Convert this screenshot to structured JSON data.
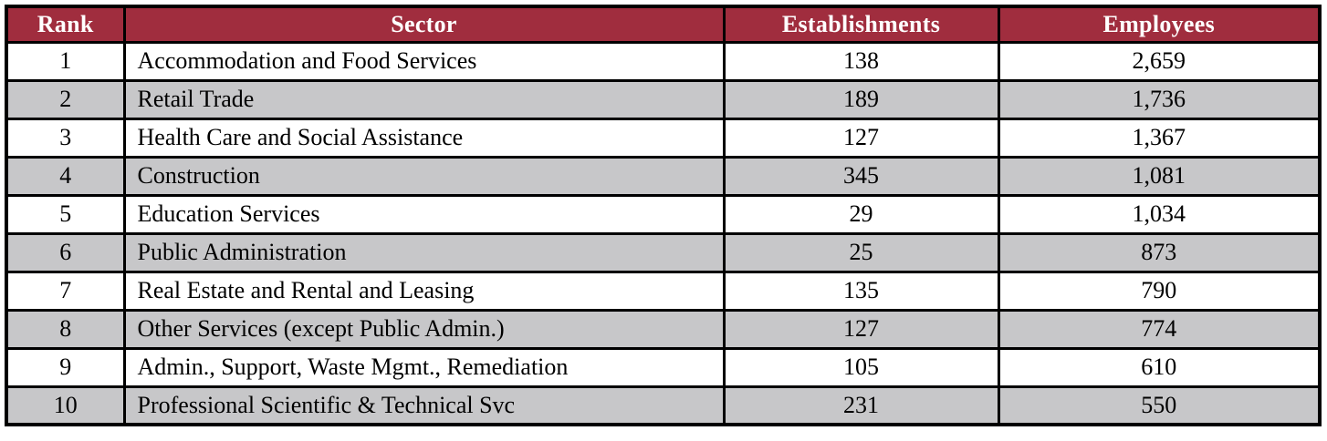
{
  "colors": {
    "header_bg": "#A02D3E",
    "header_text": "#FFFFFF",
    "row_white_bg": "#FFFFFF",
    "row_gray_bg": "#C7C7C9",
    "border": "#000000",
    "body_text": "#000000"
  },
  "table": {
    "columns": [
      {
        "label": "Rank"
      },
      {
        "label": "Sector"
      },
      {
        "label": "Establishments"
      },
      {
        "label": "Employees"
      }
    ],
    "rows": [
      {
        "rank": "1",
        "sector": "Accommodation and Food Services",
        "establishments": "138",
        "employees": "2,659"
      },
      {
        "rank": "2",
        "sector": "Retail Trade",
        "establishments": "189",
        "employees": "1,736"
      },
      {
        "rank": "3",
        "sector": "Health Care and Social Assistance",
        "establishments": "127",
        "employees": "1,367"
      },
      {
        "rank": "4",
        "sector": "Construction",
        "establishments": "345",
        "employees": "1,081"
      },
      {
        "rank": "5",
        "sector": "Education Services",
        "establishments": "29",
        "employees": "1,034"
      },
      {
        "rank": "6",
        "sector": "Public Administration",
        "establishments": "25",
        "employees": "873"
      },
      {
        "rank": "7",
        "sector": "Real Estate and Rental and Leasing",
        "establishments": "135",
        "employees": "790"
      },
      {
        "rank": "8",
        "sector": "Other Services (except Public Admin.)",
        "establishments": "127",
        "employees": "774"
      },
      {
        "rank": "9",
        "sector": "Admin., Support, Waste Mgmt., Remediation",
        "establishments": "105",
        "employees": "610"
      },
      {
        "rank": "10",
        "sector": "Professional Scientific & Technical Svc",
        "establishments": "231",
        "employees": "550"
      }
    ]
  }
}
